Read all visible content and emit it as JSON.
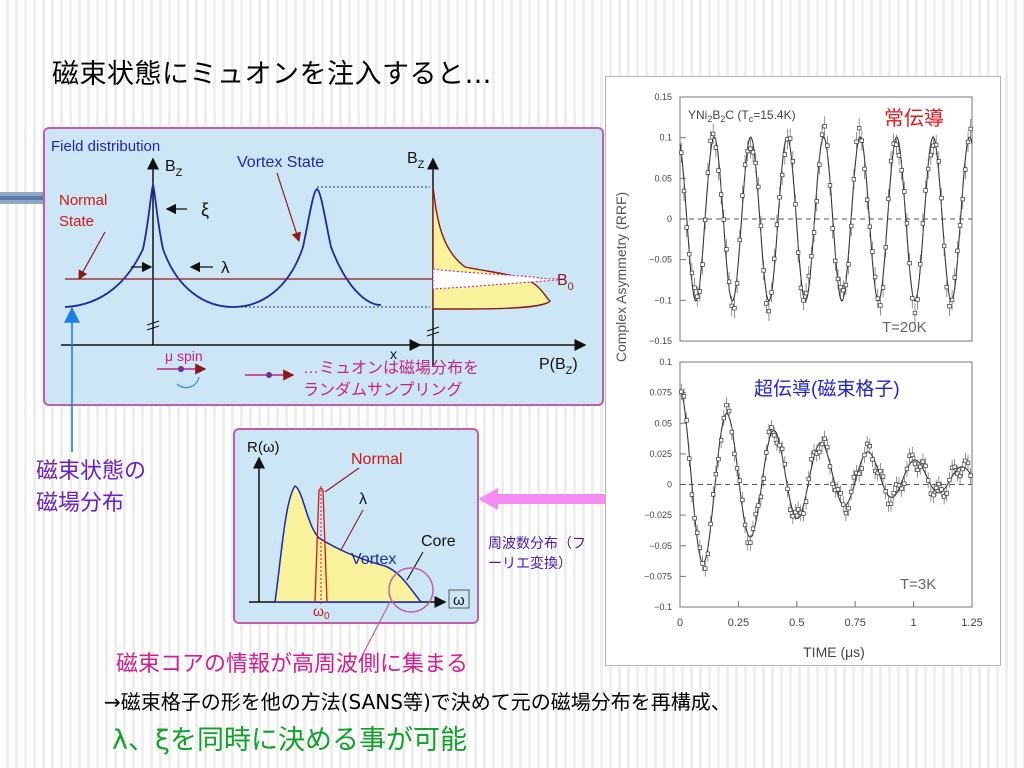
{
  "slide": {
    "title": "磁束状態にミュオンを注入すると…",
    "flux_state_label": "磁束状態の\n磁場分布",
    "freq_label": "周波数分布（フーリエ変換）",
    "core_info": "磁束コアの情報が高周波側に集まる",
    "conclusion_line1": "→磁束格子の形を他の方法(SANS等)で決めて元の磁場分布を再構成、",
    "conclusion_line2": "λ、ξを同時に決める事が可能"
  },
  "field_panel": {
    "title": "Field distribution",
    "bz_label": "B",
    "bz_sub": "Z",
    "vortex_state": "Vortex State",
    "normal_state_1": "Normal",
    "normal_state_2": "State",
    "xi": "ξ",
    "lambda": "λ",
    "b0": "B",
    "b0_sub": "0",
    "x_axis": "x",
    "p_label": "P(B",
    "p_sub": "Z",
    "p_close": ")",
    "mu_spin": "μ spin",
    "sampling_1": "…ミュオンは磁場分布を",
    "sampling_2": "ランダムサンプリング"
  },
  "freq_panel": {
    "r_label": "R(ω)",
    "normal": "Normal",
    "lambda": "λ",
    "core": "Core",
    "vortex": "Vortex",
    "omega0": "ω",
    "omega0_sub": "0",
    "omega": "ω"
  },
  "muon_plot": {
    "sample": "YNi",
    "sample_sub": "2",
    "sample_b": "B",
    "sample_c": "C  (T",
    "tc_sub": "c",
    "tc_value": "=15.4K)",
    "top_label": "常伝導",
    "bottom_label": "超伝導(磁束格子)",
    "top_temp": "T=20K",
    "bottom_temp": "T=3K",
    "y_axis_label": "Complex Asymmetry (RRF)",
    "x_axis_label": "TIME (μs)",
    "top_yticks": [
      "0.15",
      "0.1",
      "0.05",
      "0",
      "−0.05",
      "−0.1",
      "−0.15"
    ],
    "bottom_yticks": [
      "0.1",
      "0.075",
      "0.05",
      "0.025",
      "0",
      "−0.025",
      "−0.05",
      "−0.075",
      "−0.1"
    ],
    "xticks": [
      "0",
      "0.25",
      "0.5",
      "0.75",
      "1",
      "1.25"
    ],
    "colors": {
      "red_label": "#e8141e",
      "blue_label": "#1f1fd6"
    }
  }
}
